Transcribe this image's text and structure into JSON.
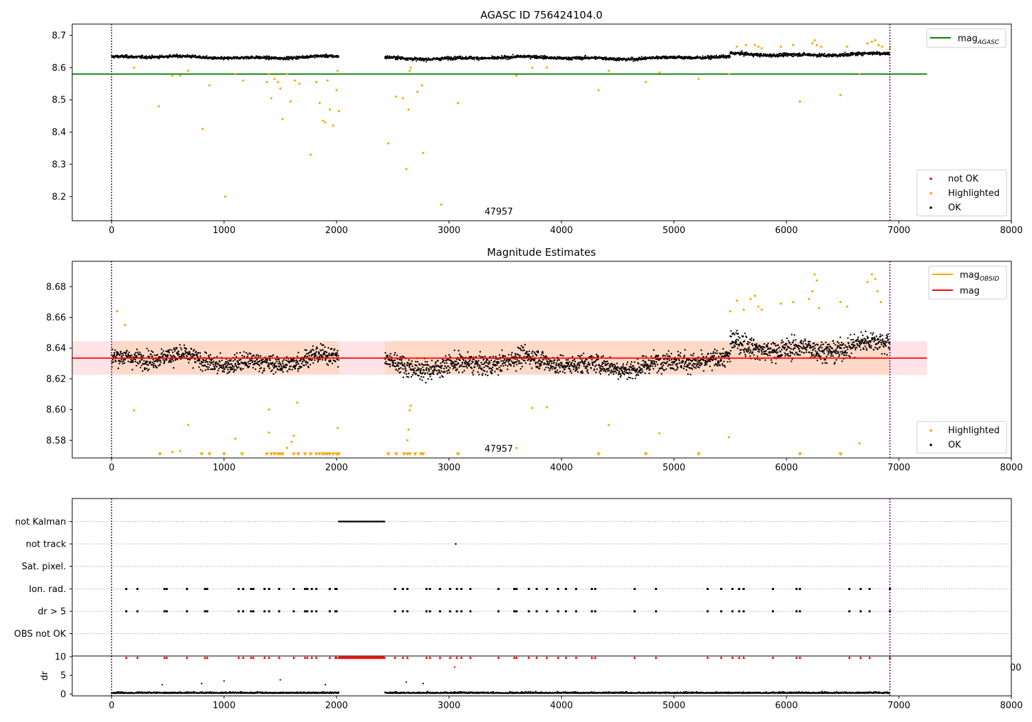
{
  "colors": {
    "ok": "#000000",
    "highlighted": "#ffa500",
    "not_ok": "#ff0000",
    "agasc_line": "#008000",
    "mag_line": "#ff0000",
    "obsid_line": "#ffa500",
    "obs_boundary": "#800080",
    "band_outer": "#ffe3e6",
    "band_inner": "#ffd9c8"
  },
  "chart_data": [
    {
      "type": "scatter",
      "title": "AGASC ID 756424104.0",
      "xlim": [
        -350,
        8000
      ],
      "ylim": [
        8.125,
        8.735
      ],
      "xticks": [
        "0",
        "1000",
        "2000",
        "3000",
        "4000",
        "5000",
        "6000",
        "7000",
        "8000"
      ],
      "yticks": [
        "8.2",
        "8.3",
        "8.4",
        "8.5",
        "8.6",
        "8.7"
      ],
      "obs_boundaries": [
        0,
        6920
      ],
      "obsid_label": "47957",
      "agasc_mag": 8.58,
      "legend_line": {
        "label": "mag",
        "sub": "AGASC"
      },
      "legend_points": [
        "not OK",
        "Highlighted",
        "OK"
      ],
      "ok_segments": [
        {
          "start": 0,
          "end": 2020,
          "center": 8.632,
          "spread": 0.011
        },
        {
          "start": 2430,
          "end": 5500,
          "center": 8.63,
          "spread": 0.012
        },
        {
          "start": 5500,
          "end": 6920,
          "center": 8.641,
          "spread": 0.013
        }
      ],
      "highlighted_points": [
        [
          200,
          8.6
        ],
        [
          420,
          8.48
        ],
        [
          540,
          8.575
        ],
        [
          610,
          8.575
        ],
        [
          680,
          8.59
        ],
        [
          810,
          8.41
        ],
        [
          870,
          8.545
        ],
        [
          1010,
          8.2
        ],
        [
          1100,
          8.58
        ],
        [
          1170,
          8.56
        ],
        [
          1380,
          8.555
        ],
        [
          1400,
          8.58
        ],
        [
          1420,
          8.505
        ],
        [
          1450,
          8.565
        ],
        [
          1480,
          8.555
        ],
        [
          1500,
          8.535
        ],
        [
          1520,
          8.44
        ],
        [
          1560,
          8.58
        ],
        [
          1590,
          8.495
        ],
        [
          1630,
          8.56
        ],
        [
          1670,
          8.55
        ],
        [
          1770,
          8.33
        ],
        [
          1820,
          8.555
        ],
        [
          1850,
          8.49
        ],
        [
          1880,
          8.435
        ],
        [
          1900,
          8.43
        ],
        [
          1920,
          8.56
        ],
        [
          1940,
          8.47
        ],
        [
          1970,
          8.42
        ],
        [
          2000,
          8.53
        ],
        [
          2010,
          8.59
        ],
        [
          2020,
          8.465
        ],
        [
          2460,
          8.365
        ],
        [
          2530,
          8.51
        ],
        [
          2590,
          8.505
        ],
        [
          2620,
          8.285
        ],
        [
          2640,
          8.47
        ],
        [
          2650,
          8.59
        ],
        [
          2660,
          8.6
        ],
        [
          2720,
          8.525
        ],
        [
          2760,
          8.545
        ],
        [
          2770,
          8.335
        ],
        [
          2930,
          8.175
        ],
        [
          3080,
          8.49
        ],
        [
          3600,
          8.575
        ],
        [
          3740,
          8.6
        ],
        [
          3870,
          8.6
        ],
        [
          4330,
          8.53
        ],
        [
          4420,
          8.59
        ],
        [
          4750,
          8.555
        ],
        [
          4870,
          8.585
        ],
        [
          5220,
          8.565
        ],
        [
          5490,
          8.58
        ],
        [
          5560,
          8.665
        ],
        [
          5640,
          8.67
        ],
        [
          5720,
          8.67
        ],
        [
          5750,
          8.665
        ],
        [
          5780,
          8.66
        ],
        [
          5950,
          8.665
        ],
        [
          6060,
          8.67
        ],
        [
          6120,
          8.495
        ],
        [
          6230,
          8.675
        ],
        [
          6250,
          8.685
        ],
        [
          6270,
          8.67
        ],
        [
          6310,
          8.665
        ],
        [
          6480,
          8.515
        ],
        [
          6540,
          8.665
        ],
        [
          6650,
          8.58
        ],
        [
          6720,
          8.675
        ],
        [
          6760,
          8.68
        ],
        [
          6790,
          8.685
        ],
        [
          6820,
          8.67
        ],
        [
          6850,
          8.665
        ],
        [
          6920,
          8.66
        ]
      ]
    },
    {
      "type": "scatter",
      "title": "Magnitude Estimates",
      "xlim": [
        -350,
        8000
      ],
      "ylim": [
        8.5685,
        8.6965
      ],
      "xticks": [
        "0",
        "1000",
        "2000",
        "3000",
        "4000",
        "5000",
        "6000",
        "7000",
        "8000"
      ],
      "yticks": [
        "8.58",
        "8.60",
        "8.62",
        "8.64",
        "8.66",
        "8.68"
      ],
      "obs_boundaries": [
        0,
        6920
      ],
      "obsid_label": "47957",
      "mag": 8.6335,
      "band_outer": [
        8.6225,
        8.6445
      ],
      "band_inner": [
        8.623,
        8.6445
      ],
      "legend_lines": [
        {
          "label": "mag",
          "sub": "OBSID"
        },
        {
          "label": "mag",
          "sub": ""
        }
      ],
      "legend_points": [
        "Highlighted",
        "OK"
      ],
      "highlighted_points": [
        [
          50,
          8.664
        ],
        [
          120,
          8.655
        ],
        [
          200,
          8.5995
        ],
        [
          540,
          8.5725
        ],
        [
          610,
          8.573
        ],
        [
          680,
          8.59
        ],
        [
          1100,
          8.581
        ],
        [
          1400,
          8.585
        ],
        [
          1400,
          8.6
        ],
        [
          1560,
          8.575
        ],
        [
          1600,
          8.579
        ],
        [
          1620,
          8.583
        ],
        [
          1650,
          8.6045
        ],
        [
          2010,
          8.588
        ],
        [
          2630,
          8.58
        ],
        [
          2640,
          8.587
        ],
        [
          2650,
          8.5995
        ],
        [
          2660,
          8.6025
        ],
        [
          3600,
          8.575
        ],
        [
          3740,
          8.601
        ],
        [
          3870,
          8.6015
        ],
        [
          4420,
          8.59
        ],
        [
          4870,
          8.5845
        ],
        [
          5490,
          8.582
        ],
        [
          5500,
          8.664
        ],
        [
          5560,
          8.671
        ],
        [
          5620,
          8.665
        ],
        [
          5680,
          8.672
        ],
        [
          5720,
          8.674
        ],
        [
          5750,
          8.667
        ],
        [
          5780,
          8.665
        ],
        [
          5950,
          8.669
        ],
        [
          6060,
          8.67
        ],
        [
          6200,
          8.672
        ],
        [
          6230,
          8.677
        ],
        [
          6250,
          8.688
        ],
        [
          6270,
          8.684
        ],
        [
          6290,
          8.666
        ],
        [
          6480,
          8.67
        ],
        [
          6540,
          8.667
        ],
        [
          6650,
          8.578
        ],
        [
          6720,
          8.683
        ],
        [
          6760,
          8.688
        ],
        [
          6790,
          8.685
        ],
        [
          6810,
          8.677
        ],
        [
          6840,
          8.67
        ]
      ],
      "below_axis_x": [
        430,
        800,
        870,
        1000,
        1160,
        1380,
        1420,
        1450,
        1480,
        1500,
        1520,
        1620,
        1660,
        1720,
        1770,
        1820,
        1850,
        1880,
        1900,
        1920,
        1940,
        1970,
        2000,
        2020,
        2460,
        2530,
        2600,
        2630,
        2650,
        2700,
        2750,
        2770,
        3080,
        4330,
        4750,
        5220,
        6120,
        6480
      ]
    },
    {
      "type": "event-strip",
      "xlim": [
        -350,
        8000
      ],
      "xticks": [
        "0",
        "1000",
        "2000",
        "3000",
        "4000",
        "5000",
        "6000",
        "7000",
        "8000"
      ],
      "row_labels": [
        "not Kalman",
        "not track",
        "Sat. pixel.",
        "Ion. rad.",
        "dr > 5",
        "OBS not OK"
      ],
      "obs_boundaries": [
        0,
        6920
      ],
      "not_kalman_range": [
        2020,
        2430
      ],
      "not_track_x": [
        3060
      ],
      "event_x": [
        130,
        230,
        470,
        490,
        670,
        830,
        850,
        1130,
        1170,
        1240,
        1260,
        1360,
        1400,
        1490,
        1620,
        1720,
        1740,
        1780,
        1820,
        1940,
        1990,
        2000,
        2520,
        2590,
        2630,
        2800,
        2830,
        2920,
        3010,
        3070,
        3110,
        3190,
        3440,
        3580,
        3600,
        3710,
        3780,
        3870,
        3970,
        4040,
        4130,
        4270,
        4300,
        4650,
        4840,
        5300,
        5420,
        5520,
        5580,
        5620,
        5880,
        6090,
        6120,
        6560,
        6660,
        6740,
        6920
      ]
    },
    {
      "type": "scatter",
      "ylabel": "dr",
      "xlim": [
        -350,
        8000
      ],
      "ylim": [
        -0.5,
        10.2
      ],
      "yticks": [
        "0",
        "5",
        "10"
      ],
      "xticks": [
        "0",
        "1000",
        "2000",
        "3000",
        "4000",
        "5000",
        "6000",
        "7000",
        "8000"
      ],
      "obs_boundaries": [
        0,
        6920
      ],
      "cut_off_label": "00",
      "outlier_points": [
        [
          450,
          2.5
        ],
        [
          800,
          2.8
        ],
        [
          1000,
          3.5
        ],
        [
          1500,
          3.8
        ],
        [
          1900,
          2.5
        ],
        [
          2620,
          3.2
        ],
        [
          2770,
          2.8
        ]
      ],
      "red_points": [
        [
          3050,
          7.2
        ]
      ]
    }
  ]
}
